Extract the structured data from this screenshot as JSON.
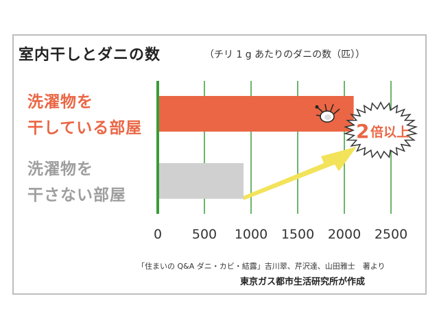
{
  "title": "室内干しとダニの数",
  "unit_note": "（チリ 1 g あたりのダニの数（匹））",
  "categories": [
    "洗濯物を\n干している部屋",
    "洗濯物を\n干さない部屋"
  ],
  "annotation": {
    "num": "2",
    "text": "倍以上"
  },
  "source_note": "「住まいの Q&A ダニ・カビ・結露」吉川翠、芹沢達、山田雅士　著より",
  "credit": "東京ガス都市生活研究所が作成",
  "colors": {
    "bar1": "#ea6644",
    "bar2": "#d0d0d0",
    "grid": "#3a9b3a",
    "arrow": "#f2e35a"
  },
  "chart_data": {
    "type": "bar",
    "orientation": "horizontal",
    "categories": [
      "洗濯物を干している部屋",
      "洗濯物を干さない部屋"
    ],
    "values": [
      2100,
      920
    ],
    "xlim": [
      0,
      2500
    ],
    "xticks": [
      0,
      500,
      1000,
      1500,
      2000,
      2500
    ],
    "grid": true
  }
}
